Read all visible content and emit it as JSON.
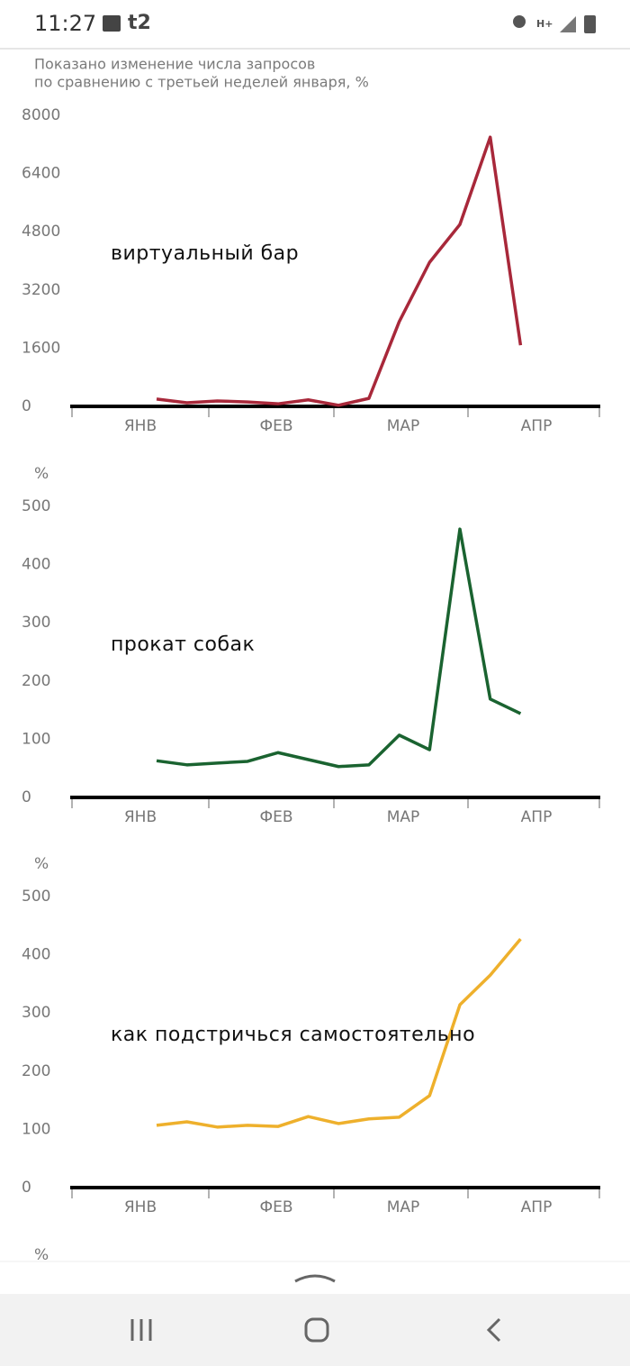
{
  "status_bar": {
    "time": "11:27",
    "carrier": "t2"
  },
  "chart_data": [
    {
      "type": "line",
      "subtitle": [
        "Показано изменение числа запросов",
        "по сравнению с третьей неделей января, %"
      ],
      "label": "виртуальный бар",
      "color": "#a8283a",
      "values": [
        200,
        100,
        150,
        120,
        70,
        180,
        30,
        220,
        2330,
        3960,
        5000,
        7400,
        1680
      ],
      "month_labels": [
        "ЯНВ",
        "ФЕВ",
        "МАР",
        "АПР"
      ],
      "ylim": [
        0,
        8000
      ],
      "yticks": [
        0,
        1600,
        3200,
        4800,
        6400,
        8000
      ]
    },
    {
      "type": "line",
      "y_unit": "%",
      "label": "прокат собак",
      "color": "#1a6330",
      "values": [
        63,
        56,
        59,
        62,
        77,
        65,
        53,
        56,
        107,
        82,
        461,
        169,
        144
      ],
      "month_labels": [
        "ЯНВ",
        "ФЕВ",
        "МАР",
        "АПР"
      ],
      "ylim": [
        0,
        500
      ],
      "yticks": [
        0,
        100,
        200,
        300,
        400,
        500
      ]
    },
    {
      "type": "line",
      "y_unit": "%",
      "label": "как подстричься самостоятельно",
      "color": "#eeb02c",
      "values": [
        107,
        113,
        104,
        107,
        105,
        122,
        110,
        118,
        121,
        158,
        314,
        365,
        427
      ],
      "month_labels": [
        "ЯНВ",
        "ФЕВ",
        "МАР",
        "АПР"
      ],
      "ylim": [
        0,
        500
      ],
      "yticks": [
        0,
        100,
        200,
        300,
        400,
        500
      ]
    }
  ],
  "next_chart_unit": "%"
}
